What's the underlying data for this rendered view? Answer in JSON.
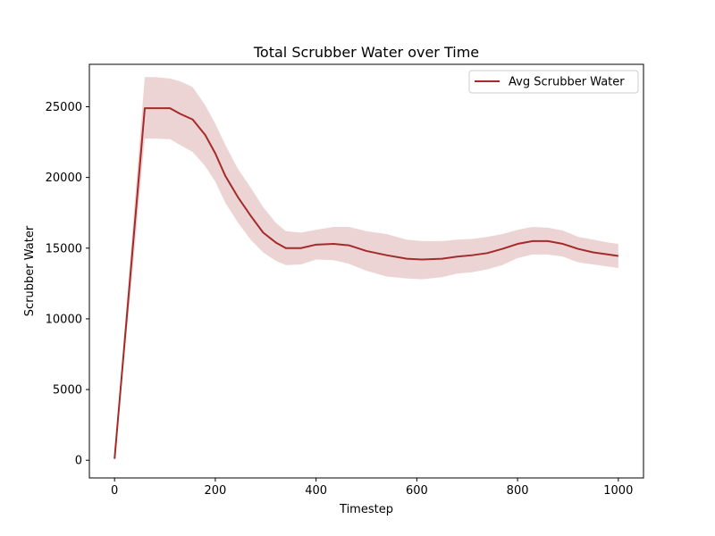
{
  "chart_data": {
    "type": "line",
    "title": "Total Scrubber Water over Time",
    "xlabel": "Timestep",
    "ylabel": "Scrubber Water",
    "xlim": [
      -50,
      1050
    ],
    "ylim": [
      -1250,
      28000
    ],
    "xticks": [
      0,
      200,
      400,
      600,
      800,
      1000
    ],
    "yticks": [
      0,
      5000,
      10000,
      15000,
      20000,
      25000
    ],
    "grid": false,
    "legend_position": "top-right",
    "series": [
      {
        "name": "Avg Scrubber Water",
        "color": "#a52a2a",
        "band_color": "#a52a2a",
        "band_opacity": 0.2,
        "x": [
          0,
          30,
          60,
          80,
          110,
          130,
          155,
          180,
          200,
          220,
          245,
          270,
          295,
          320,
          340,
          370,
          400,
          435,
          465,
          500,
          540,
          580,
          610,
          650,
          680,
          710,
          740,
          770,
          800,
          830,
          860,
          890,
          920,
          950,
          980,
          1000
        ],
        "mean": [
          100,
          12500,
          24900,
          24900,
          24900,
          24500,
          24100,
          23000,
          21700,
          20100,
          18600,
          17300,
          16100,
          15400,
          15000,
          15000,
          15250,
          15300,
          15200,
          14800,
          14500,
          14250,
          14200,
          14250,
          14400,
          14500,
          14650,
          14950,
          15300,
          15500,
          15500,
          15300,
          14950,
          14700,
          14550,
          14450
        ],
        "upper": [
          100,
          13800,
          27100,
          27100,
          27000,
          26800,
          26400,
          25100,
          23800,
          22300,
          20600,
          19300,
          17900,
          16800,
          16200,
          16100,
          16300,
          16500,
          16500,
          16200,
          16000,
          15600,
          15500,
          15500,
          15600,
          15650,
          15800,
          16000,
          16300,
          16500,
          16450,
          16250,
          15800,
          15600,
          15400,
          15300
        ],
        "lower": [
          100,
          11200,
          22750,
          22750,
          22700,
          22300,
          21800,
          20800,
          19700,
          18200,
          16800,
          15600,
          14700,
          14100,
          13800,
          13850,
          14200,
          14150,
          13900,
          13400,
          13000,
          12850,
          12800,
          12950,
          13200,
          13300,
          13500,
          13800,
          14300,
          14550,
          14550,
          14400,
          14000,
          13850,
          13700,
          13600
        ]
      }
    ]
  }
}
